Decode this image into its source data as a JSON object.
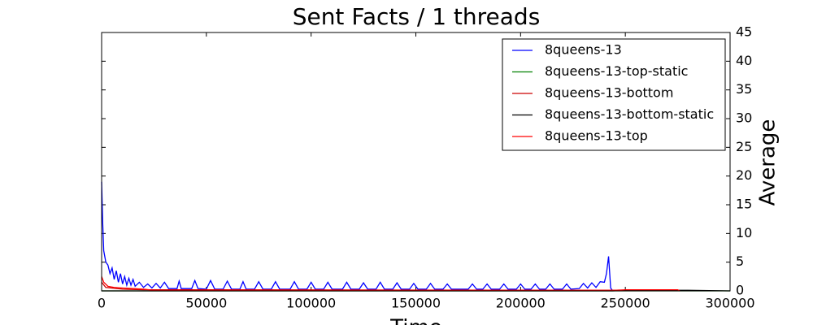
{
  "chart_data": {
    "type": "line",
    "title": "Sent Facts / 1 threads",
    "x_label": "Time",
    "y_label": "Average",
    "xlim": [
      0,
      300000
    ],
    "xticks": [
      0,
      50000,
      100000,
      150000,
      200000,
      250000,
      300000
    ],
    "ylim": [
      0,
      45
    ],
    "yticks": [
      0,
      5,
      10,
      15,
      20,
      25,
      30,
      35,
      40,
      45
    ],
    "y_axis_side": "right",
    "grid": false,
    "legend": "upper right",
    "series": [
      {
        "name": "8queens-13",
        "color": "#0000ff",
        "x": [
          0,
          500,
          1000,
          2000,
          3000,
          4000,
          5000,
          6000,
          7000,
          8000,
          9000,
          10000,
          11000,
          12000,
          13000,
          14000,
          15000,
          16000,
          18000,
          20000,
          22000,
          24000,
          26000,
          28000,
          30000,
          32000,
          36000,
          37000,
          38000,
          43000,
          44500,
          46000,
          50000,
          52000,
          54000,
          58000,
          60000,
          62000,
          66000,
          67500,
          69000,
          73000,
          75000,
          77000,
          81000,
          83000,
          85000,
          90000,
          92000,
          94000,
          98000,
          100000,
          102000,
          106000,
          108000,
          110000,
          115000,
          117000,
          119000,
          123000,
          125000,
          127000,
          131000,
          133000,
          135000,
          139000,
          141000,
          143000,
          147000,
          149000,
          151000,
          155000,
          157000,
          159000,
          163000,
          165000,
          167000,
          175000,
          177000,
          179000,
          182000,
          184000,
          186000,
          190000,
          192000,
          194000,
          198000,
          200000,
          202000,
          205000,
          207000,
          209000,
          212000,
          214000,
          216000,
          220000,
          222000,
          224000,
          228000,
          230000,
          232000,
          234000,
          236000,
          238000,
          240000,
          241000,
          242000,
          243000,
          244000
        ],
        "values": [
          19,
          12,
          7,
          5,
          4.5,
          3,
          4,
          2,
          3.5,
          1.5,
          3,
          1.2,
          2.5,
          1,
          2.2,
          1,
          2,
          0.8,
          1.5,
          0.6,
          1.2,
          0.5,
          1.3,
          0.5,
          1.5,
          0.4,
          0.4,
          1.7,
          0.4,
          0.4,
          1.8,
          0.4,
          0.3,
          1.8,
          0.3,
          0.3,
          1.7,
          0.3,
          0.3,
          1.6,
          0.3,
          0.3,
          1.6,
          0.3,
          0.3,
          1.6,
          0.3,
          0.3,
          1.6,
          0.3,
          0.3,
          1.5,
          0.3,
          0.3,
          1.5,
          0.3,
          0.3,
          1.5,
          0.3,
          0.3,
          1.4,
          0.3,
          0.3,
          1.5,
          0.3,
          0.3,
          1.4,
          0.3,
          0.3,
          1.3,
          0.3,
          0.3,
          1.3,
          0.3,
          0.3,
          1.2,
          0.3,
          0.3,
          1.2,
          0.3,
          0.3,
          1.2,
          0.3,
          0.3,
          1.2,
          0.3,
          0.3,
          1.2,
          0.3,
          0.3,
          1.2,
          0.3,
          0.3,
          1.2,
          0.3,
          0.3,
          1.2,
          0.3,
          0.4,
          1.3,
          0.5,
          1.4,
          0.6,
          1.6,
          1.5,
          3,
          6,
          0.5,
          0
        ]
      },
      {
        "name": "8queens-13-top-static",
        "color": "#008000",
        "x": [
          0,
          300000
        ],
        "values": [
          0,
          0
        ]
      },
      {
        "name": "8queens-13-bottom",
        "color": "#cc0000",
        "x": [
          0,
          2000,
          10000,
          20000,
          250000,
          275000
        ],
        "values": [
          1.5,
          0.6,
          0.3,
          0.2,
          0.1,
          0.1
        ]
      },
      {
        "name": "8queens-13-bottom-static",
        "color": "#000000",
        "x": [
          0,
          244000,
          250000,
          280000,
          300000
        ],
        "values": [
          0,
          0,
          0.1,
          0.1,
          0
        ]
      },
      {
        "name": "8queens-13-top",
        "color": "#ff0000",
        "x": [
          0,
          1000,
          3000,
          6000,
          10000,
          15000,
          20000,
          25000,
          120000,
          245000,
          250000,
          275000,
          276000
        ],
        "values": [
          2.5,
          1.5,
          0.8,
          0.6,
          0.5,
          0.4,
          0.3,
          0.1,
          0.1,
          0.1,
          0.2,
          0.2,
          0
        ]
      }
    ]
  }
}
